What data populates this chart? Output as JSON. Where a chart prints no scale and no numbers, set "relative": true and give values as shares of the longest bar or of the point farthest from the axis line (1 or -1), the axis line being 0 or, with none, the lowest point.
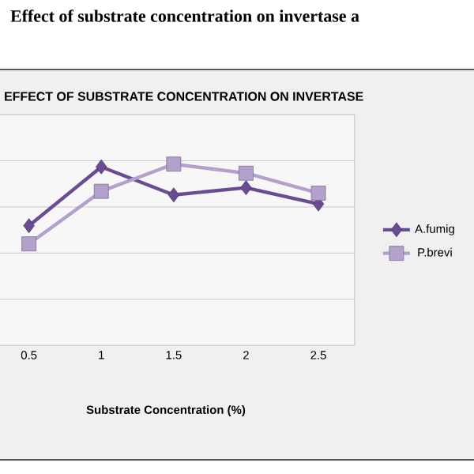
{
  "chart_data": {
    "type": "line",
    "title": "Effect of substrate concentration on invertase a",
    "subtitle": "EFFECT OF SUBSTRATE CONCENTRATION ON INVERTASE",
    "xlabel": "Substrate Concentration (%)",
    "categories": [
      "0.5",
      "1",
      "1.5",
      "2",
      "2.5"
    ],
    "relative": true,
    "grid": "y",
    "legend": "right",
    "line_style": "solid",
    "series": [
      {
        "name": "A.fumig",
        "color": "#6a4c93",
        "marker": "diamond",
        "values": [
          0.66,
          0.985,
          0.83,
          0.87,
          0.78
        ]
      },
      {
        "name": "P.brevi",
        "color": "#b3a0cc",
        "marker": "square",
        "values": [
          0.56,
          0.85,
          1,
          0.95,
          0.84
        ]
      }
    ]
  }
}
